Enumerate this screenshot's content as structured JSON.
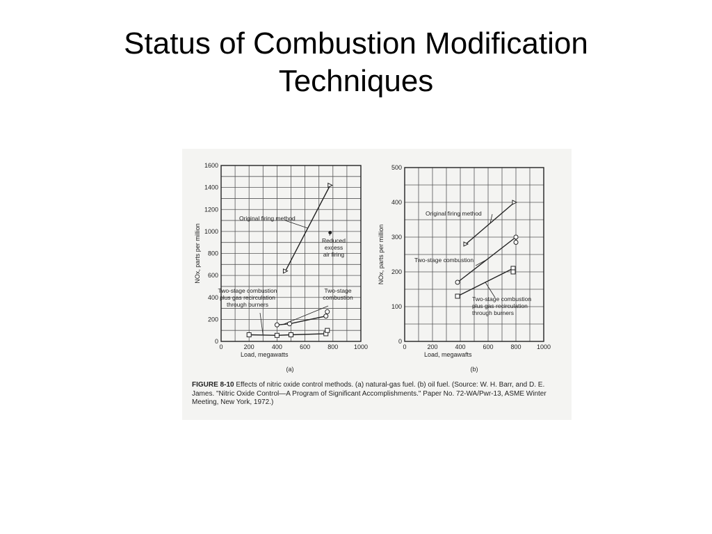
{
  "slide": {
    "title_line1": "Status of Combustion Modification",
    "title_line2": "Techniques"
  },
  "figure": {
    "caption_label": "FIGURE 8-10",
    "caption_text": "Effects of nitric oxide control methods. (a) natural-gas fuel. (b) oil fuel. (Source: W. H. Barr, and D. E. James. \"Nitric Oxide Control—A Program of Significant Accomplishments.\" Paper No. 72-WA/Pwr-13, ASME Winter Meeting, New York, 1972.)"
  },
  "chart_data": [
    {
      "type": "line",
      "panel_label": "(a)",
      "xlabel": "Load, megawatts",
      "ylabel": "NOx, parts per million",
      "xlim": [
        0,
        1000
      ],
      "ylim": [
        0,
        1600
      ],
      "xticks": [
        0,
        200,
        400,
        600,
        800,
        1000
      ],
      "yticks": [
        0,
        200,
        400,
        600,
        800,
        1000,
        1200,
        1400,
        1600
      ],
      "grid": true,
      "series": [
        {
          "name": "Original firing method",
          "marker": "triangle",
          "points": [
            [
              460,
              640
            ],
            [
              780,
              1420
            ]
          ]
        },
        {
          "name": "Reduced excess air firing",
          "marker": "dot",
          "points": [
            [
              780,
              990
            ]
          ]
        },
        {
          "name": "Two-stage combustion",
          "marker": "circle",
          "points": [
            [
              400,
              150
            ],
            [
              490,
              160
            ],
            [
              750,
              230
            ],
            [
              760,
              270
            ]
          ]
        },
        {
          "name": "Two-stage combustion plus gas recirculation through burners",
          "marker": "square",
          "points": [
            [
              200,
              60
            ],
            [
              400,
              55
            ],
            [
              500,
              60
            ],
            [
              750,
              70
            ],
            [
              760,
              100
            ]
          ]
        }
      ],
      "annotations": [
        {
          "text": "Original firing method"
        },
        {
          "text": "Reduced excess air firing",
          "lines": [
            "Reduced",
            "excess",
            "air firing"
          ]
        },
        {
          "text": "Two-stage combustion",
          "lines": [
            "Two-stage",
            "combustion"
          ]
        },
        {
          "text": "Two-stage combustion plus gas recirculation through burners",
          "lines": [
            "Two-stage combustion",
            "plus gas recirculation",
            "through burners"
          ]
        }
      ]
    },
    {
      "type": "line",
      "panel_label": "(b)",
      "xlabel": "Load, megawafts",
      "ylabel": "NOx, parts per million",
      "xlim": [
        0,
        1000
      ],
      "ylim": [
        0,
        500
      ],
      "xticks": [
        0,
        200,
        400,
        600,
        800,
        1000
      ],
      "yticks": [
        0,
        100,
        200,
        300,
        400,
        500
      ],
      "grid": true,
      "series": [
        {
          "name": "Original firing method",
          "marker": "triangle",
          "points": [
            [
              440,
              280
            ],
            [
              790,
              400
            ]
          ]
        },
        {
          "name": "Two-stage combustion",
          "marker": "circle",
          "points": [
            [
              380,
              170
            ],
            [
              800,
              300
            ],
            [
              800,
              285
            ]
          ]
        },
        {
          "name": "Two-stage combustion plus gas recirculation through burners",
          "marker": "square",
          "points": [
            [
              380,
              130
            ],
            [
              780,
              210
            ],
            [
              780,
              200
            ]
          ]
        }
      ],
      "annotations": [
        {
          "text": "Original firing method"
        },
        {
          "text": "Two-stage combustion"
        },
        {
          "text": "Two-stage combustion plus gas recirculation through burners",
          "lines": [
            "Two-stage combustion",
            "plus gas recirculation",
            "through burners"
          ]
        }
      ]
    }
  ]
}
